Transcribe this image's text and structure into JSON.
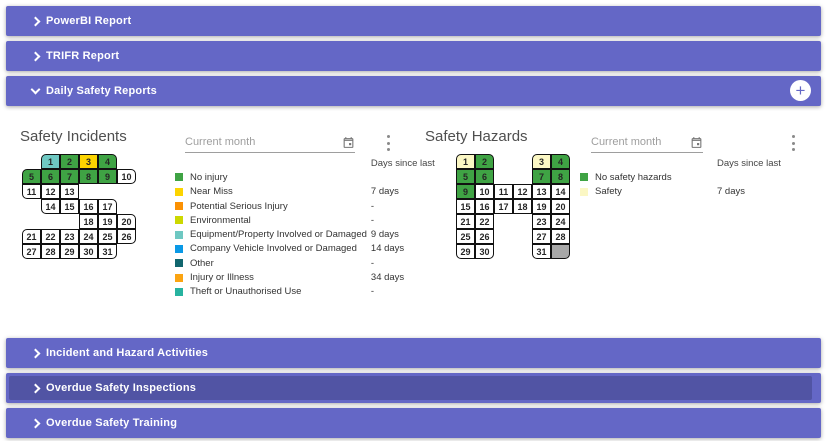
{
  "accordion": {
    "bars": [
      {
        "label": "PowerBI Report",
        "state": "collapsed"
      },
      {
        "label": "TRIFR Report",
        "state": "collapsed"
      },
      {
        "label": "Daily Safety Reports",
        "state": "expanded"
      },
      {
        "label": "Incident and Hazard Activities",
        "state": "collapsed"
      },
      {
        "label": "Overdue Safety Inspections",
        "state": "pressed"
      },
      {
        "label": "Overdue Safety Training",
        "state": "collapsed"
      }
    ],
    "add_icon": "+"
  },
  "colors": {
    "accent": "#6467c6",
    "accent_dark": "#5154a4",
    "green": "#3fa344",
    "yellow": "#fcd400",
    "orange": "#fb9103",
    "lime": "#ccd800",
    "teal_light": "#6ec8c2",
    "blue": "#0a99e6",
    "teal_dark": "#11666e",
    "orange2": "#fba411",
    "teal_mid": "#27b3a0",
    "cream": "#fbf7c4",
    "gray_cell": "#a8a8a8",
    "white": "#ffffff"
  },
  "incidents": {
    "title": "Safety Incidents",
    "month_filter": {
      "value": "Current month"
    },
    "days_since_header": "Days since last",
    "calendar_cells": [
      {
        "d": "1",
        "r": 1,
        "c": 2,
        "color": "teal_light"
      },
      {
        "d": "2",
        "r": 1,
        "c": 3,
        "color": "green"
      },
      {
        "d": "3",
        "r": 1,
        "c": 4,
        "color": "yellow"
      },
      {
        "d": "4",
        "r": 1,
        "c": 5,
        "color": "green"
      },
      {
        "d": "5",
        "r": 2,
        "c": 1,
        "color": "green"
      },
      {
        "d": "6",
        "r": 2,
        "c": 2,
        "color": "green"
      },
      {
        "d": "7",
        "r": 2,
        "c": 3,
        "color": "green"
      },
      {
        "d": "8",
        "r": 2,
        "c": 4,
        "color": "green"
      },
      {
        "d": "9",
        "r": 2,
        "c": 5,
        "color": "green"
      },
      {
        "d": "10",
        "r": 2,
        "c": 6,
        "color": "white"
      },
      {
        "d": "11",
        "r": 3,
        "c": 1,
        "color": "white"
      },
      {
        "d": "12",
        "r": 3,
        "c": 2,
        "color": "white"
      },
      {
        "d": "13",
        "r": 3,
        "c": 3,
        "color": "white"
      },
      {
        "d": "14",
        "r": 4,
        "c": 2,
        "color": "white"
      },
      {
        "d": "15",
        "r": 4,
        "c": 3,
        "color": "white"
      },
      {
        "d": "16",
        "r": 4,
        "c": 4,
        "color": "white"
      },
      {
        "d": "17",
        "r": 4,
        "c": 5,
        "color": "white"
      },
      {
        "d": "18",
        "r": 5,
        "c": 4,
        "color": "white"
      },
      {
        "d": "19",
        "r": 5,
        "c": 5,
        "color": "white"
      },
      {
        "d": "20",
        "r": 5,
        "c": 6,
        "color": "white"
      },
      {
        "d": "21",
        "r": 6,
        "c": 1,
        "color": "white"
      },
      {
        "d": "22",
        "r": 6,
        "c": 2,
        "color": "white"
      },
      {
        "d": "23",
        "r": 6,
        "c": 3,
        "color": "white"
      },
      {
        "d": "24",
        "r": 6,
        "c": 4,
        "color": "white"
      },
      {
        "d": "25",
        "r": 6,
        "c": 5,
        "color": "white"
      },
      {
        "d": "26",
        "r": 6,
        "c": 6,
        "color": "white"
      },
      {
        "d": "27",
        "r": 7,
        "c": 1,
        "color": "white"
      },
      {
        "d": "28",
        "r": 7,
        "c": 2,
        "color": "white"
      },
      {
        "d": "29",
        "r": 7,
        "c": 3,
        "color": "white"
      },
      {
        "d": "30",
        "r": 7,
        "c": 4,
        "color": "white"
      },
      {
        "d": "31",
        "r": 7,
        "c": 5,
        "color": "white"
      }
    ],
    "legend": [
      {
        "label": "No injury",
        "color": "green",
        "value": ""
      },
      {
        "label": "Near Miss",
        "color": "yellow",
        "value": "7 days"
      },
      {
        "label": "Potential Serious Injury",
        "color": "orange",
        "value": "-"
      },
      {
        "label": "Environmental",
        "color": "lime",
        "value": "-"
      },
      {
        "label": "Equipment/Property Involved or Damaged",
        "color": "teal_light",
        "value": "9 days"
      },
      {
        "label": "Company Vehicle Involved or Damaged",
        "color": "blue",
        "value": "14 days"
      },
      {
        "label": "Other",
        "color": "teal_dark",
        "value": "-"
      },
      {
        "label": "Injury or Illness",
        "color": "orange2",
        "value": "34 days"
      },
      {
        "label": "Theft or Unauthorised Use",
        "color": "teal_mid",
        "value": "-"
      }
    ]
  },
  "hazards": {
    "title": "Safety Hazards",
    "month_filter": {
      "value": "Current month"
    },
    "days_since_header": "Days since last",
    "calendar_cells": [
      {
        "d": "1",
        "r": 1,
        "c": 1,
        "color": "cream"
      },
      {
        "d": "2",
        "r": 1,
        "c": 2,
        "color": "green"
      },
      {
        "d": "3",
        "r": 1,
        "c": 5,
        "color": "cream"
      },
      {
        "d": "4",
        "r": 1,
        "c": 6,
        "color": "green"
      },
      {
        "d": "5",
        "r": 2,
        "c": 1,
        "color": "green"
      },
      {
        "d": "6",
        "r": 2,
        "c": 2,
        "color": "green"
      },
      {
        "d": "7",
        "r": 2,
        "c": 5,
        "color": "green"
      },
      {
        "d": "8",
        "r": 2,
        "c": 6,
        "color": "green"
      },
      {
        "d": "9",
        "r": 3,
        "c": 1,
        "color": "green"
      },
      {
        "d": "10",
        "r": 3,
        "c": 2,
        "color": "white"
      },
      {
        "d": "11",
        "r": 3,
        "c": 3,
        "color": "white"
      },
      {
        "d": "12",
        "r": 3,
        "c": 4,
        "color": "white"
      },
      {
        "d": "13",
        "r": 3,
        "c": 5,
        "color": "white"
      },
      {
        "d": "14",
        "r": 3,
        "c": 6,
        "color": "white"
      },
      {
        "d": "15",
        "r": 4,
        "c": 1,
        "color": "white"
      },
      {
        "d": "16",
        "r": 4,
        "c": 2,
        "color": "white"
      },
      {
        "d": "17",
        "r": 4,
        "c": 3,
        "color": "white"
      },
      {
        "d": "18",
        "r": 4,
        "c": 4,
        "color": "white"
      },
      {
        "d": "19",
        "r": 4,
        "c": 5,
        "color": "white"
      },
      {
        "d": "20",
        "r": 4,
        "c": 6,
        "color": "white"
      },
      {
        "d": "21",
        "r": 5,
        "c": 1,
        "color": "white"
      },
      {
        "d": "22",
        "r": 5,
        "c": 2,
        "color": "white"
      },
      {
        "d": "23",
        "r": 5,
        "c": 5,
        "color": "white"
      },
      {
        "d": "24",
        "r": 5,
        "c": 6,
        "color": "white"
      },
      {
        "d": "25",
        "r": 6,
        "c": 1,
        "color": "white"
      },
      {
        "d": "26",
        "r": 6,
        "c": 2,
        "color": "white"
      },
      {
        "d": "27",
        "r": 6,
        "c": 5,
        "color": "white"
      },
      {
        "d": "28",
        "r": 6,
        "c": 6,
        "color": "white"
      },
      {
        "d": "29",
        "r": 7,
        "c": 1,
        "color": "white"
      },
      {
        "d": "30",
        "r": 7,
        "c": 2,
        "color": "white"
      },
      {
        "d": "31",
        "r": 7,
        "c": 5,
        "color": "white"
      },
      {
        "d": "",
        "r": 7,
        "c": 6,
        "color": "gray_cell"
      }
    ],
    "legend": [
      {
        "label": "No safety hazards",
        "color": "green",
        "value": ""
      },
      {
        "label": "Safety",
        "color": "cream",
        "value": "7 days"
      }
    ]
  }
}
